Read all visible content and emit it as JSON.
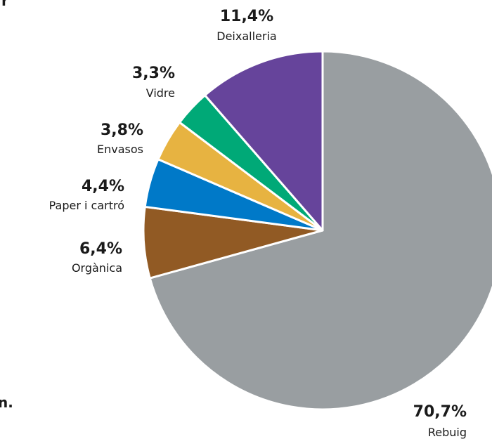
{
  "edge_fragments": {
    "top": "r",
    "bottom": "n."
  },
  "chart_data": {
    "type": "pie",
    "start_angle_deg": 0,
    "direction": "clockwise",
    "slices": [
      {
        "label": "Rebuig",
        "value": 70.7,
        "value_label": "70,7%",
        "color": "#999ea1"
      },
      {
        "label": "Orgànica",
        "value": 6.4,
        "value_label": "6,4%",
        "color": "#915a24"
      },
      {
        "label": "Paper i cartró",
        "value": 4.4,
        "value_label": "4,4%",
        "color": "#0079c8"
      },
      {
        "label": "Envasos",
        "value": 3.8,
        "value_label": "3,8%",
        "color": "#e7b341"
      },
      {
        "label": "Vidre",
        "value": 3.3,
        "value_label": "3,3%",
        "color": "#00a977"
      },
      {
        "label": "Deixalleria",
        "value": 11.4,
        "value_label": "11,4%",
        "color": "#66449b"
      }
    ]
  }
}
